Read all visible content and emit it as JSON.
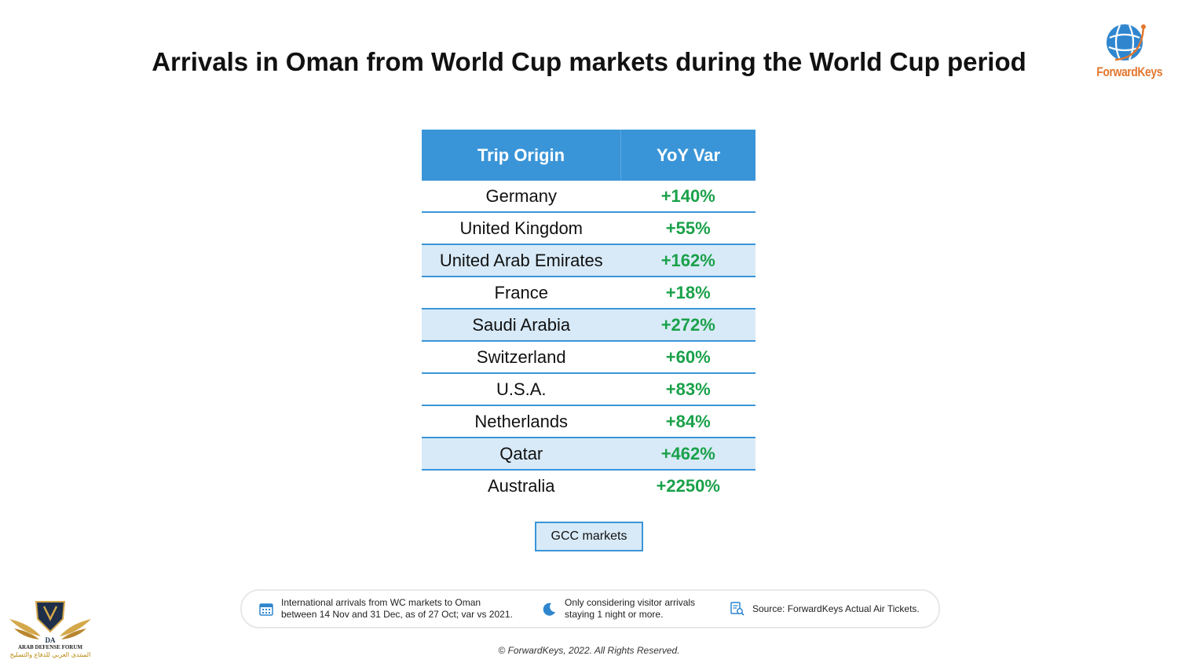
{
  "title": "Arrivals in Oman from World Cup markets during the World Cup period",
  "brand": {
    "name": "ForwardKeys",
    "color": "#e2772e",
    "globe_color": "#2f86cf"
  },
  "table": {
    "headers": [
      "Trip Origin",
      "YoY Var"
    ],
    "header_color": "#3a95d8",
    "highlight_color": "#d8eaf8",
    "positive_color": "#1aa14a",
    "rows": [
      {
        "origin": "Germany",
        "var": "+140%",
        "gcc": false
      },
      {
        "origin": "United Kingdom",
        "var": "+55%",
        "gcc": false
      },
      {
        "origin": "United Arab Emirates",
        "var": "+162%",
        "gcc": true
      },
      {
        "origin": "France",
        "var": "+18%",
        "gcc": false
      },
      {
        "origin": "Saudi Arabia",
        "var": "+272%",
        "gcc": true
      },
      {
        "origin": "Switzerland",
        "var": "+60%",
        "gcc": false
      },
      {
        "origin": "U.S.A.",
        "var": "+83%",
        "gcc": false
      },
      {
        "origin": "Netherlands",
        "var": "+84%",
        "gcc": false
      },
      {
        "origin": "Qatar",
        "var": "+462%",
        "gcc": true
      },
      {
        "origin": "Australia",
        "var": "+2250%",
        "gcc": false
      }
    ]
  },
  "legend": {
    "gcc_label": "GCC markets"
  },
  "footer": {
    "notes": [
      {
        "icon": "calendar-icon",
        "lines": [
          "International arrivals from WC markets to Oman",
          "between 14 Nov and 31 Dec, as of 27 Oct; var vs 2021."
        ]
      },
      {
        "icon": "moon-icon",
        "lines": [
          "Only considering visitor arrivals",
          "staying 1 night or more."
        ]
      },
      {
        "icon": "document-search-icon",
        "lines": [
          "Source: ForwardKeys Actual Air Tickets."
        ]
      }
    ],
    "copyright": "© ForwardKeys, 2022. All Rights Reserved."
  },
  "watermark": {
    "line1": "ARAB DEFENSE FORUM",
    "line2": "المنتدى العربي للدفاع والتسليح",
    "monogram": "DA"
  }
}
